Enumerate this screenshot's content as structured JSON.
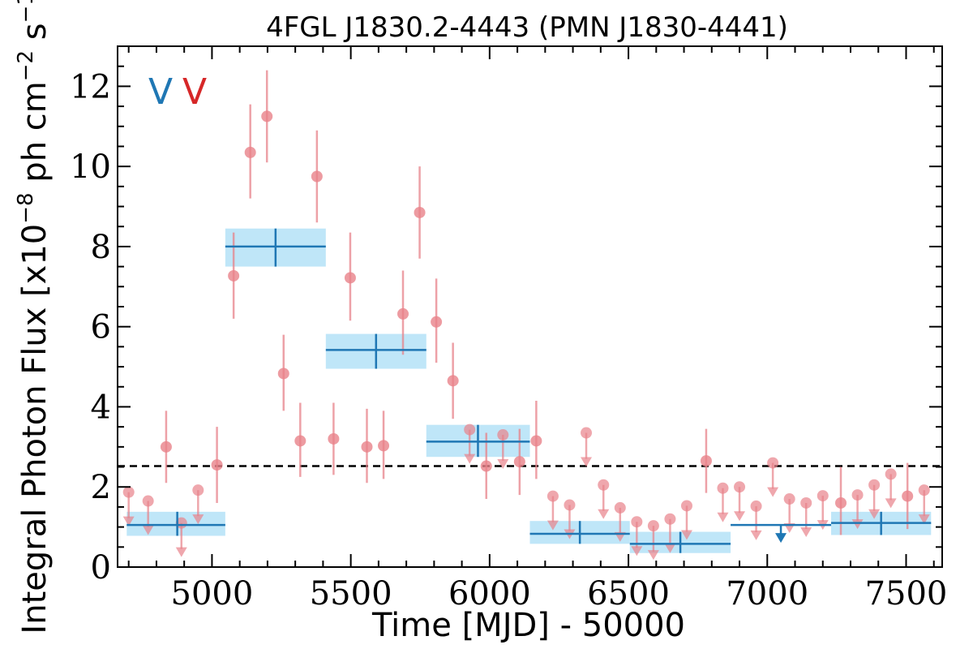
{
  "chart_data": {
    "type": "scatter",
    "title": "4FGL J1830.2-4443 (PMN J1830-4441)",
    "xlabel": "Time [MJD] - 50000",
    "ylabel": "Integral Photon Flux [x10",
    "ylabel_exp1": "−8",
    "ylabel_mid": " ph cm",
    "ylabel_exp2": "−2",
    "ylabel_mid2": " s",
    "ylabel_exp3": "−1",
    "ylabel_end": "]",
    "xlim": [
      4660,
      7630
    ],
    "ylim": [
      0,
      13
    ],
    "xticks": [
      5000,
      5500,
      6000,
      6500,
      7000,
      7500
    ],
    "yticks": [
      0,
      2,
      4,
      6,
      8,
      10,
      12
    ],
    "xtick_labels": [
      "5000",
      "5500",
      "6000",
      "6500",
      "7000",
      "7500"
    ],
    "ytick_labels": [
      "0",
      "2",
      "4",
      "6",
      "8",
      "10",
      "12"
    ],
    "legend": {
      "placement": "top-left",
      "items": [
        {
          "text": "V",
          "color": "#1f77b4"
        },
        {
          "text": "V",
          "color": "#d62728"
        }
      ]
    },
    "reference_line": {
      "y": 2.52,
      "style": "dashed",
      "color": "#000000"
    },
    "colors": {
      "fine": "#e8828a",
      "coarse": "#1f77b4",
      "band": "#bfe6f8"
    },
    "coarse_bins": [
      {
        "x0": 4693,
        "x1": 5048,
        "xc": 4875,
        "y": 1.05,
        "ylo": 0.78,
        "yhi": 1.38
      },
      {
        "x0": 5048,
        "x1": 5410,
        "xc": 5229,
        "y": 8.0,
        "ylo": 7.5,
        "yhi": 8.45
      },
      {
        "x0": 5410,
        "x1": 5772,
        "xc": 5591,
        "y": 5.42,
        "ylo": 4.95,
        "yhi": 5.82
      },
      {
        "x0": 5772,
        "x1": 6145,
        "xc": 5958,
        "y": 3.13,
        "ylo": 2.75,
        "yhi": 3.55
      },
      {
        "x0": 6145,
        "x1": 6505,
        "xc": 6325,
        "y": 0.83,
        "ylo": 0.58,
        "yhi": 1.15
      },
      {
        "x0": 6505,
        "x1": 6868,
        "xc": 6687,
        "y": 0.58,
        "ylo": 0.35,
        "yhi": 0.88
      },
      {
        "x0": 6868,
        "x1": 7230,
        "xc": 7049,
        "y": 1.05,
        "upper_limit": true
      },
      {
        "x0": 7230,
        "x1": 7590,
        "xc": 7410,
        "y": 1.1,
        "ylo": 0.8,
        "yhi": 1.38
      }
    ],
    "detections": [
      {
        "x": 4835,
        "y": 3.0,
        "lo": 2.1,
        "hi": 3.9
      },
      {
        "x": 5018,
        "y": 2.55,
        "lo": 1.6,
        "hi": 3.5
      },
      {
        "x": 5078,
        "y": 7.27,
        "lo": 6.2,
        "hi": 8.35
      },
      {
        "x": 5138,
        "y": 10.35,
        "lo": 9.2,
        "hi": 11.55
      },
      {
        "x": 5198,
        "y": 11.25,
        "lo": 10.1,
        "hi": 12.4
      },
      {
        "x": 5258,
        "y": 4.83,
        "lo": 3.9,
        "hi": 5.8
      },
      {
        "x": 5318,
        "y": 3.15,
        "lo": 2.25,
        "hi": 4.1
      },
      {
        "x": 5378,
        "y": 9.75,
        "lo": 8.6,
        "hi": 10.9
      },
      {
        "x": 5438,
        "y": 3.2,
        "lo": 2.3,
        "hi": 4.1
      },
      {
        "x": 5498,
        "y": 7.22,
        "lo": 6.15,
        "hi": 8.35
      },
      {
        "x": 5558,
        "y": 3.0,
        "lo": 2.1,
        "hi": 3.95
      },
      {
        "x": 5618,
        "y": 3.03,
        "lo": 2.2,
        "hi": 3.9
      },
      {
        "x": 5688,
        "y": 6.32,
        "lo": 5.3,
        "hi": 7.4
      },
      {
        "x": 5748,
        "y": 8.85,
        "lo": 7.7,
        "hi": 10.0
      },
      {
        "x": 5808,
        "y": 6.12,
        "lo": 5.1,
        "hi": 7.2
      },
      {
        "x": 5868,
        "y": 4.65,
        "lo": 3.7,
        "hi": 5.6
      },
      {
        "x": 5988,
        "y": 2.52,
        "lo": 1.7,
        "hi": 3.35
      },
      {
        "x": 6108,
        "y": 2.63,
        "lo": 1.8,
        "hi": 3.45
      },
      {
        "x": 6168,
        "y": 3.15,
        "lo": 2.2,
        "hi": 4.15
      },
      {
        "x": 6780,
        "y": 2.65,
        "lo": 1.85,
        "hi": 3.45
      },
      {
        "x": 7265,
        "y": 1.6,
        "lo": 0.8,
        "hi": 2.5
      },
      {
        "x": 7505,
        "y": 1.77,
        "lo": 0.95,
        "hi": 2.6
      }
    ],
    "upper_limits": [
      {
        "x": 4700,
        "y": 1.87
      },
      {
        "x": 4770,
        "y": 1.65
      },
      {
        "x": 4890,
        "y": 1.1
      },
      {
        "x": 4950,
        "y": 1.92
      },
      {
        "x": 5928,
        "y": 3.43
      },
      {
        "x": 6048,
        "y": 3.3
      },
      {
        "x": 6228,
        "y": 1.77
      },
      {
        "x": 6288,
        "y": 1.55
      },
      {
        "x": 6348,
        "y": 3.35
      },
      {
        "x": 6410,
        "y": 2.05
      },
      {
        "x": 6470,
        "y": 1.48
      },
      {
        "x": 6530,
        "y": 1.13
      },
      {
        "x": 6590,
        "y": 1.03
      },
      {
        "x": 6650,
        "y": 1.2
      },
      {
        "x": 6710,
        "y": 1.53
      },
      {
        "x": 6840,
        "y": 1.97
      },
      {
        "x": 6900,
        "y": 2.0
      },
      {
        "x": 6960,
        "y": 1.52
      },
      {
        "x": 7020,
        "y": 2.6
      },
      {
        "x": 7080,
        "y": 1.7
      },
      {
        "x": 7140,
        "y": 1.6
      },
      {
        "x": 7200,
        "y": 1.78
      },
      {
        "x": 7325,
        "y": 1.8
      },
      {
        "x": 7385,
        "y": 2.05
      },
      {
        "x": 7445,
        "y": 2.32
      },
      {
        "x": 7565,
        "y": 1.92
      }
    ]
  }
}
